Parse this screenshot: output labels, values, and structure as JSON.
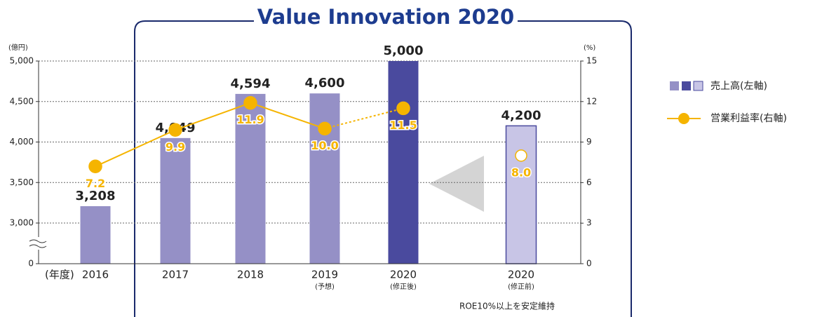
{
  "chart_data": {
    "type": "bar_line",
    "title": "Value Innovation 2020",
    "y_label": "(億円)",
    "y2_label": "(%)",
    "x_label": "(年度)",
    "note": "ROE10%以上を安定維持",
    "categories": [
      "2016",
      "2017",
      "2018",
      "2019",
      "2020",
      "2020"
    ],
    "category_notes": [
      null,
      null,
      null,
      "(予想)",
      "(修正後)",
      "(修正前)"
    ],
    "ylim": [
      0,
      5000
    ],
    "y_break": [
      0,
      3000
    ],
    "yticks": [
      0,
      {
        "value": 3000,
        "label": "3,000"
      },
      {
        "value": 3500,
        "label": "3,500"
      },
      {
        "value": 4000,
        "label": "4,000"
      },
      {
        "value": 4500,
        "label": "4,500"
      },
      {
        "value": 5000,
        "label": "5,000"
      }
    ],
    "y2lim": [
      0,
      15
    ],
    "y2ticks": [
      0,
      3,
      6,
      9,
      12,
      15
    ],
    "grid": true,
    "legend": "right",
    "series": [
      {
        "name": "売上高(左軸)",
        "type": "bar",
        "axis": "y",
        "values": [
          3208,
          4049,
          4594,
          4600,
          5000,
          4200
        ],
        "value_labels": [
          "3,208",
          "4,049",
          "4,594",
          "4,600",
          "5,000",
          "4,200"
        ],
        "colors": [
          "#9590c6",
          "#9590c6",
          "#9590c6",
          "#9590c6",
          "#4a4a9e",
          "#c8c5e6"
        ],
        "legend_colors": [
          "#9590c6",
          "#4a4a9e",
          "#c8c5e6"
        ]
      },
      {
        "name": "営業利益率(右軸)",
        "type": "line",
        "axis": "y2",
        "color": "#f5b400",
        "values": [
          7.2,
          9.9,
          11.9,
          10.0,
          11.5,
          8.0
        ],
        "value_labels": [
          "7.2",
          "9.9",
          "11.9",
          "10.0",
          "11.5",
          "8.0"
        ],
        "segment_styles": [
          "solid",
          "solid",
          "solid",
          "dotted",
          null
        ],
        "markers": [
          "filled",
          "filled",
          "filled",
          "filled",
          "filled",
          "hollow"
        ]
      }
    ]
  }
}
